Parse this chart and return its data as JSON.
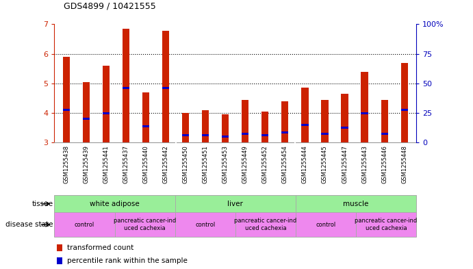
{
  "title": "GDS4899 / 10421555",
  "samples": [
    "GSM1255438",
    "GSM1255439",
    "GSM1255441",
    "GSM1255437",
    "GSM1255440",
    "GSM1255442",
    "GSM1255450",
    "GSM1255451",
    "GSM1255453",
    "GSM1255449",
    "GSM1255452",
    "GSM1255454",
    "GSM1255444",
    "GSM1255445",
    "GSM1255447",
    "GSM1255443",
    "GSM1255446",
    "GSM1255448"
  ],
  "transformed_count": [
    5.9,
    5.05,
    5.6,
    6.85,
    4.7,
    6.78,
    4.0,
    4.1,
    3.95,
    4.45,
    4.05,
    4.4,
    4.85,
    4.45,
    4.65,
    5.4,
    4.45,
    5.7
  ],
  "percentile": [
    4.1,
    3.8,
    4.0,
    4.85,
    3.55,
    4.85,
    3.25,
    3.25,
    3.2,
    3.3,
    3.25,
    3.35,
    3.6,
    3.3,
    3.5,
    4.0,
    3.3,
    4.1
  ],
  "ylim_left": [
    3,
    7
  ],
  "ylim_right": [
    0,
    100
  ],
  "yticks_left": [
    3,
    4,
    5,
    6,
    7
  ],
  "yticks_right": [
    0,
    25,
    50,
    75,
    100
  ],
  "bar_color": "#cc2200",
  "marker_color": "#0000cc",
  "bar_width": 0.35,
  "tissue_groups": [
    {
      "label": "white adipose",
      "start": 0,
      "end": 6
    },
    {
      "label": "liver",
      "start": 6,
      "end": 12
    },
    {
      "label": "muscle",
      "start": 12,
      "end": 18
    }
  ],
  "tissue_color": "#99ee99",
  "disease_groups": [
    {
      "label": "control",
      "start": 0,
      "end": 3
    },
    {
      "label": "pancreatic cancer-ind\nuced cachexia",
      "start": 3,
      "end": 6
    },
    {
      "label": "control",
      "start": 6,
      "end": 9
    },
    {
      "label": "pancreatic cancer-ind\nuced cachexia",
      "start": 9,
      "end": 12
    },
    {
      "label": "control",
      "start": 12,
      "end": 15
    },
    {
      "label": "pancreatic cancer-ind\nuced cachexia",
      "start": 15,
      "end": 18
    }
  ],
  "disease_color": "#ee88ee",
  "background_color": "#ffffff",
  "xtick_bg": "#cccccc",
  "left_axis_color": "#cc2200",
  "right_axis_color": "#0000bb"
}
